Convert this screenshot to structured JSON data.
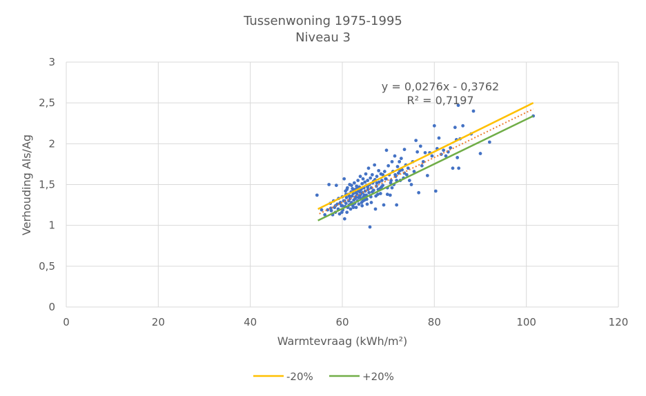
{
  "chart_data": {
    "type": "scatter",
    "title": "Tussenwoning 1975-1995",
    "subtitle": "Niveau 3",
    "xlabel": "Warmtevraag (kWh/m²)",
    "ylabel": "Verhouding Als/Ag",
    "xlim": [
      0,
      120
    ],
    "ylim": [
      0,
      3
    ],
    "x_ticks": [
      "0",
      "20",
      "40",
      "60",
      "80",
      "100",
      "120"
    ],
    "y_ticks": [
      "0",
      "0,5",
      "1",
      "1,5",
      "2",
      "2,5",
      "3"
    ],
    "grid": true,
    "legend_position": "bottom",
    "trendline": {
      "type": "linear",
      "slope": 0.0276,
      "intercept": -0.3762,
      "x_range": [
        55,
        101.5
      ],
      "equation": "y = 0,0276x - 0,3762",
      "r_squared": "R² = 0,7197",
      "color": "#ED7D31"
    },
    "series": [
      {
        "name": "-20%",
        "color": "#FFC000",
        "values": [
          [
            54.7,
            1.2
          ],
          [
            101.5,
            2.5
          ]
        ]
      },
      {
        "name": "+20%",
        "color": "#70AD47",
        "values": [
          [
            54.7,
            1.06
          ],
          [
            101.5,
            2.34
          ]
        ]
      }
    ],
    "points_color": "#4472C4",
    "points": [
      [
        54.5,
        1.37
      ],
      [
        55.5,
        1.19
      ],
      [
        56.2,
        1.13
      ],
      [
        56.8,
        1.19
      ],
      [
        57.1,
        1.5
      ],
      [
        57.4,
        1.27
      ],
      [
        57.6,
        1.18
      ],
      [
        57.9,
        1.13
      ],
      [
        58.1,
        1.3
      ],
      [
        58.3,
        1.22
      ],
      [
        58.5,
        1.16
      ],
      [
        58.7,
        1.49
      ],
      [
        58.9,
        1.26
      ],
      [
        59.1,
        1.2
      ],
      [
        59.2,
        1.33
      ],
      [
        59.4,
        1.14
      ],
      [
        59.6,
        1.28
      ],
      [
        59.8,
        1.24
      ],
      [
        60.0,
        1.35
      ],
      [
        60.1,
        1.19
      ],
      [
        60.3,
        1.3
      ],
      [
        60.4,
        1.57
      ],
      [
        60.5,
        1.08
      ],
      [
        60.6,
        1.23
      ],
      [
        60.7,
        1.42
      ],
      [
        60.8,
        1.27
      ],
      [
        60.9,
        1.34
      ],
      [
        61.0,
        1.16
      ],
      [
        61.1,
        1.46
      ],
      [
        61.2,
        1.22
      ],
      [
        61.3,
        1.38
      ],
      [
        61.4,
        1.3
      ],
      [
        61.5,
        1.25
      ],
      [
        61.6,
        1.5
      ],
      [
        61.7,
        1.33
      ],
      [
        61.8,
        1.2
      ],
      [
        61.9,
        1.41
      ],
      [
        62.0,
        1.28
      ],
      [
        62.1,
        1.36
      ],
      [
        62.2,
        1.45
      ],
      [
        62.3,
        1.24
      ],
      [
        62.4,
        1.39
      ],
      [
        62.5,
        1.31
      ],
      [
        62.6,
        1.52
      ],
      [
        62.7,
        1.27
      ],
      [
        62.8,
        1.44
      ],
      [
        62.9,
        1.35
      ],
      [
        63.0,
        1.22
      ],
      [
        63.1,
        1.48
      ],
      [
        63.2,
        1.38
      ],
      [
        63.3,
        1.3
      ],
      [
        63.4,
        1.55
      ],
      [
        63.5,
        1.42
      ],
      [
        63.6,
        1.26
      ],
      [
        63.7,
        1.47
      ],
      [
        63.8,
        1.36
      ],
      [
        63.9,
        1.6
      ],
      [
        64.0,
        1.33
      ],
      [
        64.1,
        1.44
      ],
      [
        64.2,
        1.28
      ],
      [
        64.3,
        1.51
      ],
      [
        64.4,
        1.4
      ],
      [
        64.5,
        1.57
      ],
      [
        64.6,
        1.35
      ],
      [
        64.7,
        1.46
      ],
      [
        64.8,
        1.31
      ],
      [
        64.9,
        1.53
      ],
      [
        65.0,
        1.42
      ],
      [
        65.1,
        1.63
      ],
      [
        65.2,
        1.37
      ],
      [
        65.3,
        1.49
      ],
      [
        65.4,
        1.26
      ],
      [
        65.5,
        1.55
      ],
      [
        65.6,
        1.44
      ],
      [
        65.7,
        1.7
      ],
      [
        65.8,
        1.4
      ],
      [
        65.9,
        1.5
      ],
      [
        66.0,
        0.98
      ],
      [
        66.1,
        1.58
      ],
      [
        66.2,
        1.35
      ],
      [
        66.3,
        1.46
      ],
      [
        66.5,
        1.62
      ],
      [
        66.6,
        1.52
      ],
      [
        66.8,
        1.43
      ],
      [
        67.0,
        1.74
      ],
      [
        67.1,
        1.56
      ],
      [
        67.2,
        1.2
      ],
      [
        67.4,
        1.48
      ],
      [
        67.5,
        1.6
      ],
      [
        67.7,
        1.38
      ],
      [
        67.9,
        1.67
      ],
      [
        68.0,
        1.53
      ],
      [
        68.2,
        1.45
      ],
      [
        68.4,
        1.63
      ],
      [
        68.6,
        1.55
      ],
      [
        68.8,
        1.49
      ],
      [
        69.0,
        1.25
      ],
      [
        69.2,
        1.66
      ],
      [
        69.4,
        1.57
      ],
      [
        69.6,
        1.92
      ],
      [
        69.8,
        1.46
      ],
      [
        70.0,
        1.73
      ],
      [
        70.2,
        1.62
      ],
      [
        70.4,
        1.37
      ],
      [
        70.6,
        1.55
      ],
      [
        70.8,
        1.78
      ],
      [
        71.0,
        1.66
      ],
      [
        71.2,
        1.5
      ],
      [
        71.4,
        1.85
      ],
      [
        71.6,
        1.6
      ],
      [
        71.8,
        1.25
      ],
      [
        72.0,
        1.72
      ],
      [
        72.2,
        1.64
      ],
      [
        72.4,
        1.78
      ],
      [
        72.6,
        1.55
      ],
      [
        72.8,
        1.82
      ],
      [
        73.0,
        1.68
      ],
      [
        73.3,
        1.58
      ],
      [
        73.5,
        1.93
      ],
      [
        73.8,
        1.74
      ],
      [
        74.0,
        1.62
      ],
      [
        74.3,
        1.7
      ],
      [
        74.6,
        1.55
      ],
      [
        75.0,
        1.5
      ],
      [
        75.3,
        1.78
      ],
      [
        75.6,
        1.66
      ],
      [
        76.0,
        2.04
      ],
      [
        76.3,
        1.9
      ],
      [
        76.6,
        1.4
      ],
      [
        77.0,
        1.97
      ],
      [
        77.3,
        1.73
      ],
      [
        77.6,
        1.78
      ],
      [
        78.0,
        1.89
      ],
      [
        78.5,
        1.61
      ],
      [
        79.0,
        1.89
      ],
      [
        79.5,
        1.85
      ],
      [
        80.0,
        2.22
      ],
      [
        80.3,
        1.42
      ],
      [
        80.6,
        1.94
      ],
      [
        81.0,
        2.07
      ],
      [
        81.5,
        1.87
      ],
      [
        82.0,
        1.92
      ],
      [
        82.5,
        1.85
      ],
      [
        83.0,
        1.9
      ],
      [
        83.5,
        1.95
      ],
      [
        84.0,
        1.7
      ],
      [
        84.5,
        2.2
      ],
      [
        84.8,
        2.05
      ],
      [
        85.0,
        1.83
      ],
      [
        85.2,
        2.47
      ],
      [
        85.3,
        1.7
      ],
      [
        85.6,
        2.06
      ],
      [
        86.2,
        2.22
      ],
      [
        88.0,
        2.12
      ],
      [
        88.5,
        2.4
      ],
      [
        90.0,
        1.88
      ],
      [
        92.0,
        2.02
      ],
      [
        101.5,
        2.34
      ],
      [
        63.0,
        1.4
      ],
      [
        64.0,
        1.38
      ],
      [
        62.5,
        1.43
      ],
      [
        61.5,
        1.36
      ],
      [
        60.5,
        1.3
      ],
      [
        65.5,
        1.47
      ],
      [
        66.5,
        1.41
      ],
      [
        67.5,
        1.52
      ],
      [
        68.5,
        1.47
      ],
      [
        69.5,
        1.57
      ],
      [
        70.5,
        1.52
      ],
      [
        71.5,
        1.62
      ],
      [
        72.5,
        1.67
      ],
      [
        73.5,
        1.64
      ],
      [
        59.5,
        1.27
      ],
      [
        58.5,
        1.24
      ],
      [
        57.5,
        1.21
      ],
      [
        63.5,
        1.34
      ],
      [
        64.5,
        1.3
      ],
      [
        62.0,
        1.49
      ],
      [
        61.0,
        1.44
      ],
      [
        60.0,
        1.24
      ],
      [
        62.8,
        1.33
      ],
      [
        63.8,
        1.41
      ],
      [
        64.8,
        1.37
      ],
      [
        66.8,
        1.54
      ],
      [
        67.8,
        1.44
      ],
      [
        68.8,
        1.62
      ],
      [
        69.8,
        1.38
      ],
      [
        70.8,
        1.46
      ],
      [
        71.8,
        1.55
      ],
      [
        61.8,
        1.26
      ],
      [
        63.3,
        1.46
      ],
      [
        64.3,
        1.24
      ],
      [
        65.3,
        1.32
      ],
      [
        66.3,
        1.28
      ],
      [
        67.3,
        1.36
      ],
      [
        68.3,
        1.39
      ],
      [
        62.4,
        1.22
      ],
      [
        60.8,
        1.38
      ],
      [
        59.9,
        1.16
      ]
    ]
  }
}
